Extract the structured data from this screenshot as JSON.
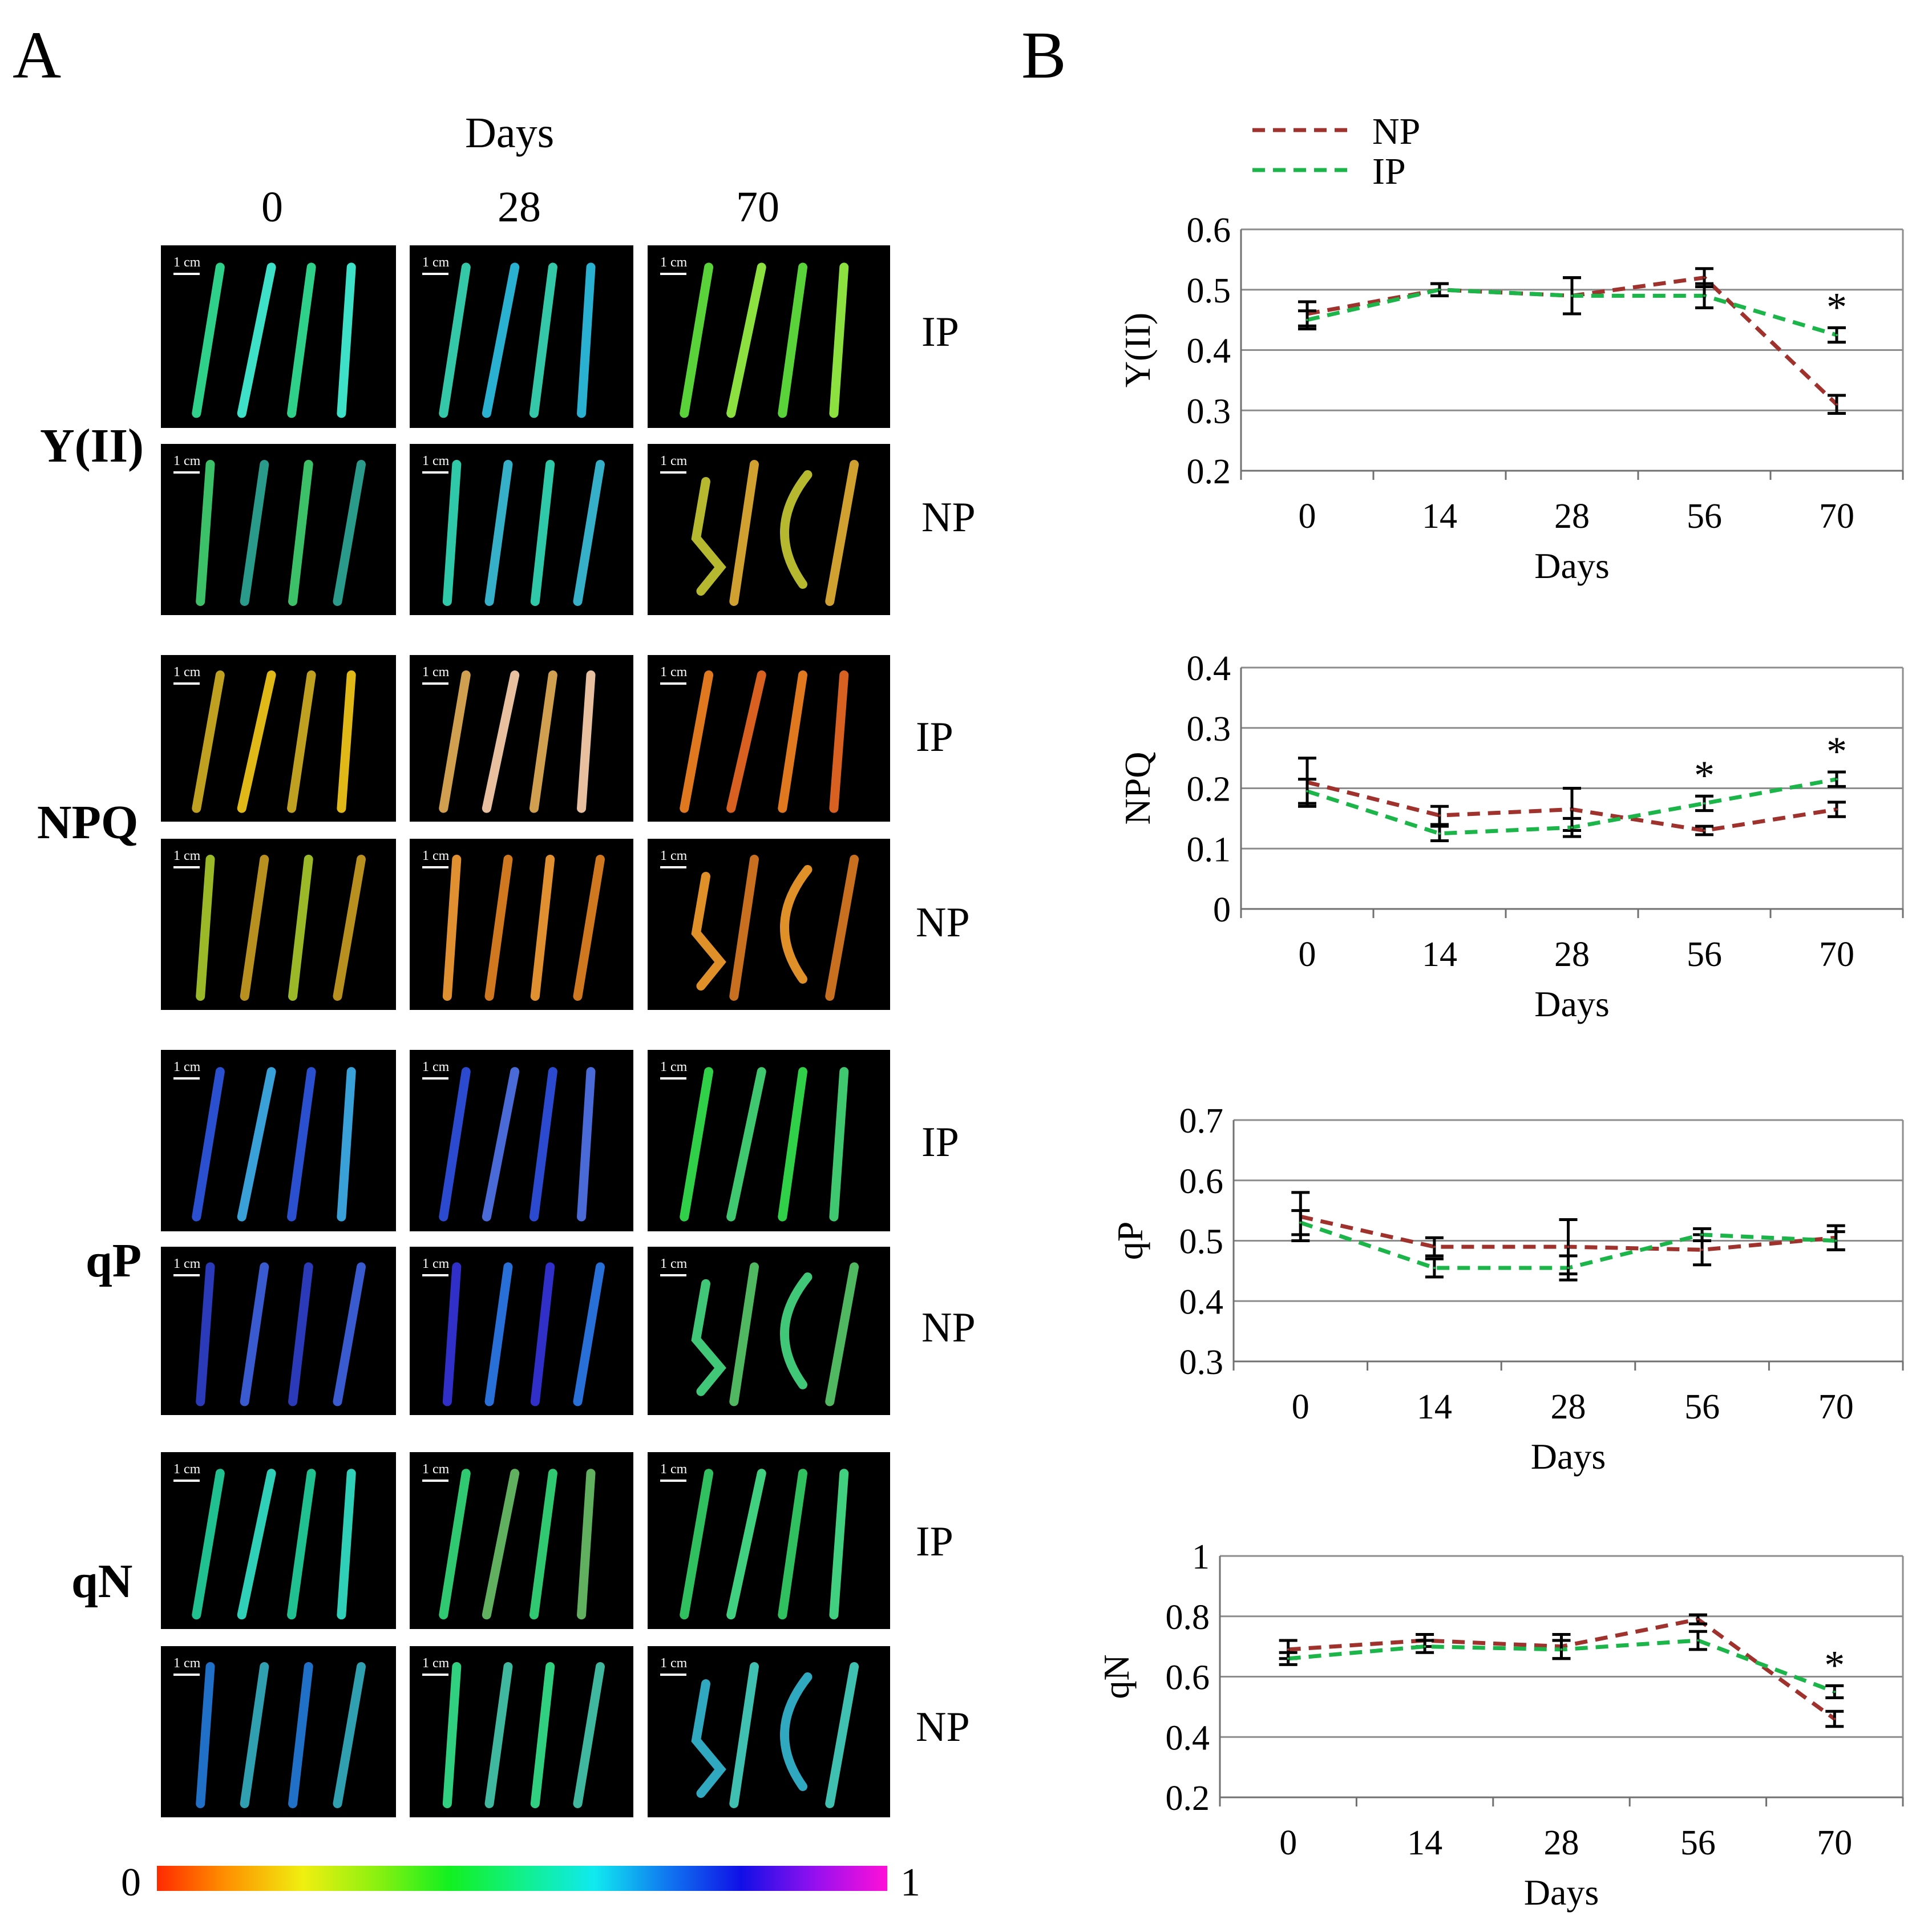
{
  "panel_a": {
    "letter": "A",
    "header": "Days",
    "columns": [
      "0",
      "28",
      "70"
    ],
    "row_groups": [
      "Y(II)",
      "NPQ",
      "qP",
      "qN"
    ],
    "treatments": [
      "IP",
      "NP"
    ],
    "scale_label": "1 cm",
    "colorbar": {
      "min_label": "0",
      "max_label": "1"
    }
  },
  "panel_b": {
    "letter": "B"
  },
  "legend": [
    {
      "name": "NP",
      "color": "#a0322e"
    },
    {
      "name": "IP",
      "color": "#1cb54a"
    }
  ],
  "chart_data": [
    {
      "type": "line",
      "ylabel": "Y(II)",
      "xlabel": "Days",
      "categories": [
        "0",
        "14",
        "28",
        "56",
        "70"
      ],
      "ylim": [
        0.2,
        0.6
      ],
      "yticks": [
        "0.2",
        "0.3",
        "0.4",
        "0.5",
        "0.6"
      ],
      "series": [
        {
          "name": "NP",
          "values": [
            0.46,
            0.5,
            0.49,
            0.52,
            0.31
          ],
          "errors": [
            0.02,
            0.01,
            0.03,
            0.015,
            0.015
          ]
        },
        {
          "name": "IP",
          "values": [
            0.45,
            0.5,
            0.49,
            0.49,
            0.425
          ],
          "errors": [
            0.015,
            0.01,
            0.03,
            0.02,
            0.012
          ]
        }
      ],
      "annotations": [
        {
          "x": "70",
          "text": "*"
        }
      ]
    },
    {
      "type": "line",
      "ylabel": "NPQ",
      "xlabel": "Days",
      "categories": [
        "0",
        "14",
        "28",
        "56",
        "70"
      ],
      "ylim": [
        0,
        0.4
      ],
      "yticks": [
        "0",
        "0.1",
        "0.2",
        "0.3",
        "0.4"
      ],
      "series": [
        {
          "name": "NP",
          "values": [
            0.21,
            0.155,
            0.165,
            0.13,
            0.165
          ],
          "errors": [
            0.04,
            0.015,
            0.035,
            0.007,
            0.012
          ]
        },
        {
          "name": "IP",
          "values": [
            0.195,
            0.125,
            0.135,
            0.175,
            0.215
          ],
          "errors": [
            0.02,
            0.012,
            0.015,
            0.012,
            0.012
          ]
        }
      ],
      "annotations": [
        {
          "x": "56",
          "text": "*"
        },
        {
          "x": "70",
          "text": "*"
        }
      ]
    },
    {
      "type": "line",
      "ylabel": "qP",
      "xlabel": "Days",
      "categories": [
        "0",
        "14",
        "28",
        "56",
        "70"
      ],
      "ylim": [
        0.3,
        0.7
      ],
      "yticks": [
        "0.3",
        "0.4",
        "0.5",
        "0.6",
        "0.7"
      ],
      "series": [
        {
          "name": "NP",
          "values": [
            0.54,
            0.49,
            0.49,
            0.485,
            0.505
          ],
          "errors": [
            0.04,
            0.015,
            0.045,
            0.025,
            0.02
          ]
        },
        {
          "name": "IP",
          "values": [
            0.53,
            0.455,
            0.455,
            0.51,
            0.5
          ],
          "errors": [
            0.02,
            0.015,
            0.02,
            0.01,
            0.015
          ]
        }
      ],
      "annotations": []
    },
    {
      "type": "line",
      "ylabel": "qN",
      "xlabel": "Days",
      "categories": [
        "0",
        "14",
        "28",
        "56",
        "70"
      ],
      "ylim": [
        0.2,
        1.0
      ],
      "yticks": [
        "0.2",
        "0.4",
        "0.6",
        "0.8",
        "1"
      ],
      "series": [
        {
          "name": "NP",
          "values": [
            0.69,
            0.72,
            0.7,
            0.79,
            0.46
          ],
          "errors": [
            0.03,
            0.02,
            0.04,
            0.015,
            0.025
          ]
        },
        {
          "name": "IP",
          "values": [
            0.66,
            0.7,
            0.69,
            0.72,
            0.55
          ],
          "errors": [
            0.02,
            0.02,
            0.03,
            0.03,
            0.02
          ]
        }
      ],
      "annotations": [
        {
          "x": "70",
          "text": "*"
        }
      ]
    }
  ]
}
